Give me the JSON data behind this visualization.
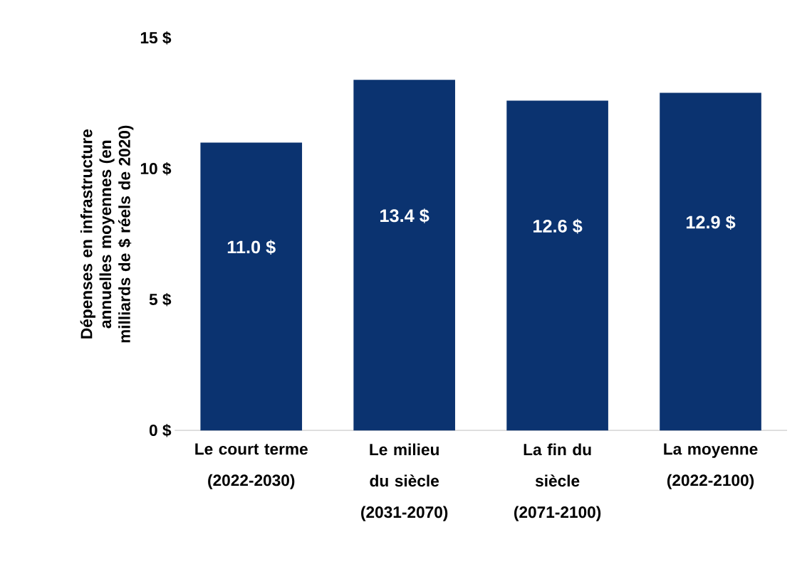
{
  "chart_data": {
    "type": "bar",
    "ylabel": "Dépenses en infrastructure annuelles moyennes (en milliards de $ réels de 2020)",
    "categories": [
      "Le court terme (2022-2030)",
      "Le milieu du siècle (2031-2070)",
      "La fin du siècle (2071-2100)",
      "La moyenne (2022-2100)"
    ],
    "values": [
      11.0,
      13.4,
      12.6,
      12.9
    ],
    "color": "#0b3370",
    "value_labels": [
      "11.0 $",
      "13.4 $",
      "12.6 $",
      "12.9 $"
    ],
    "ylim": [
      0,
      15
    ],
    "yticks": [
      {
        "value": 0,
        "label": "0 $"
      },
      {
        "value": 5,
        "label": "5 $"
      },
      {
        "value": 10,
        "label": "10 $"
      },
      {
        "value": 15,
        "label": "15 $"
      }
    ]
  }
}
